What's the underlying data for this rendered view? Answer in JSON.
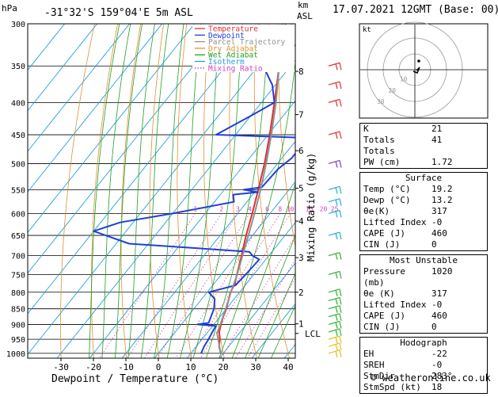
{
  "chart_data": {
    "type": "line",
    "title": "-31°32'S  159°04'E  5m  ASL",
    "date_label": "17.07.2021  12GMT  (Base: 00)",
    "xlabel": "Dewpoint / Temperature (°C)",
    "ylabel": "hPa",
    "km_label": "km\nASL",
    "mixing_axis_label": "Mixing Ratio (g/kg)",
    "xlim": [
      -40,
      40
    ],
    "ylim": [
      1000,
      300
    ],
    "x_ticks": [
      -30,
      -20,
      -10,
      0,
      10,
      20,
      30,
      40
    ],
    "p_ticks": [
      300,
      350,
      400,
      450,
      500,
      550,
      600,
      650,
      700,
      750,
      800,
      850,
      900,
      950,
      1000
    ],
    "km_ticks": [
      {
        "label": "8",
        "p": 357
      },
      {
        "label": "7",
        "p": 418
      },
      {
        "label": "6",
        "p": 477
      },
      {
        "label": "5",
        "p": 547
      },
      {
        "label": "4",
        "p": 617
      },
      {
        "label": "3",
        "p": 705
      },
      {
        "label": "2",
        "p": 800
      },
      {
        "label": "1",
        "p": 898
      },
      {
        "label": "LCL",
        "p": 930
      }
    ],
    "mixing_ratio_labels": [
      "1",
      "2",
      "3",
      "4",
      "6",
      "8",
      "10",
      "15",
      "20",
      "25"
    ],
    "legend": [
      {
        "name": "Temperature",
        "color": "#e03030",
        "style": "solid"
      },
      {
        "name": "Dewpoint",
        "color": "#1f3fd8",
        "style": "solid"
      },
      {
        "name": "Parcel Trajectory",
        "color": "#909090",
        "style": "solid"
      },
      {
        "name": "Dry Adiabat",
        "color": "#e09030",
        "style": "solid"
      },
      {
        "name": "Wet Adiabat",
        "color": "#20a020",
        "style": "solid"
      },
      {
        "name": "Isotherm",
        "color": "#20a0e0",
        "style": "solid"
      },
      {
        "name": "Mixing Ratio",
        "color": "#d040c0",
        "style": "dotted"
      }
    ],
    "series": [
      {
        "name": "Temperature",
        "color": "#e03030",
        "points": [
          [
            1000,
            19.2
          ],
          [
            975,
            17.0
          ],
          [
            950,
            15.5
          ],
          [
            925,
            13.5
          ],
          [
            900,
            12.2
          ],
          [
            875,
            11.0
          ],
          [
            850,
            10.0
          ],
          [
            825,
            8.6
          ],
          [
            800,
            7.2
          ],
          [
            775,
            6.4
          ],
          [
            750,
            4.8
          ],
          [
            700,
            1.6
          ],
          [
            650,
            -2.0
          ],
          [
            600,
            -5.5
          ],
          [
            550,
            -9.5
          ],
          [
            500,
            -14.0
          ],
          [
            450,
            -19.5
          ],
          [
            400,
            -26.0
          ],
          [
            350,
            -33.5
          ],
          [
            300,
            -42.0
          ]
        ]
      },
      {
        "name": "Dewpoint",
        "color": "#1f3fd8",
        "points": [
          [
            1000,
            13.2
          ],
          [
            975,
            12.4
          ],
          [
            950,
            12.0
          ],
          [
            925,
            11.4
          ],
          [
            905,
            11.0
          ],
          [
            900,
            5.0
          ],
          [
            895,
            8.0
          ],
          [
            870,
            7.0
          ],
          [
            850,
            6.2
          ],
          [
            820,
            4.0
          ],
          [
            800,
            0.5
          ],
          [
            780,
            7.0
          ],
          [
            750,
            7.5
          ],
          [
            710,
            8.0
          ],
          [
            700,
            5.0
          ],
          [
            690,
            3.0
          ],
          [
            670,
            -36.0
          ],
          [
            640,
            -50.0
          ],
          [
            620,
            -44.0
          ],
          [
            600,
            -30.0
          ],
          [
            575,
            -14.0
          ],
          [
            560,
            -16.0
          ],
          [
            555,
            -9.0
          ],
          [
            550,
            -14.0
          ],
          [
            545,
            -9.0
          ],
          [
            510,
            -8.5
          ],
          [
            490,
            -7.0
          ],
          [
            470,
            -7.0
          ],
          [
            455,
            -8.0
          ],
          [
            450,
            -36.0
          ],
          [
            420,
            -30.0
          ],
          [
            400,
            -26.0
          ],
          [
            375,
            -31.0
          ],
          [
            345,
            -40.0
          ],
          [
            330,
            -38.0
          ],
          [
            320,
            -30.0
          ],
          [
            310,
            -32.0
          ],
          [
            300,
            -36.0
          ]
        ]
      },
      {
        "name": "Parcel Trajectory",
        "color": "#909090",
        "points": [
          [
            1000,
            19.2
          ],
          [
            930,
            13.2
          ],
          [
            900,
            12.0
          ],
          [
            850,
            9.8
          ],
          [
            800,
            7.3
          ],
          [
            750,
            4.9
          ],
          [
            700,
            1.9
          ],
          [
            650,
            -1.3
          ],
          [
            600,
            -4.8
          ],
          [
            550,
            -8.8
          ],
          [
            500,
            -13.5
          ],
          [
            450,
            -19.0
          ],
          [
            400,
            -25.5
          ],
          [
            350,
            -33.5
          ],
          [
            300,
            -43.0
          ]
        ]
      }
    ]
  },
  "hodograph": {
    "label": "kt",
    "ring_labels": [
      "10",
      "20",
      "30"
    ]
  },
  "indices": {
    "rows": [
      {
        "label": "K",
        "value": "21"
      },
      {
        "label": "Totals Totals",
        "value": "41"
      },
      {
        "label": "PW (cm)",
        "value": "1.72"
      }
    ]
  },
  "surface": {
    "title": "Surface",
    "rows": [
      {
        "label": "Temp (°C)",
        "value": "19.2"
      },
      {
        "label": "Dewp (°C)",
        "value": "13.2"
      },
      {
        "label": "θe(K)",
        "value": "317"
      },
      {
        "label": "Lifted Index",
        "value": "-0"
      },
      {
        "label": "CAPE (J)",
        "value": "460"
      },
      {
        "label": "CIN (J)",
        "value": "0"
      }
    ]
  },
  "most_unstable": {
    "title": "Most Unstable",
    "rows": [
      {
        "label": "Pressure (mb)",
        "value": "1020"
      },
      {
        "label": "θe (K)",
        "value": "317"
      },
      {
        "label": "Lifted Index",
        "value": "-0"
      },
      {
        "label": "CAPE (J)",
        "value": "460"
      },
      {
        "label": "CIN (J)",
        "value": "0"
      }
    ]
  },
  "hodograph_stats": {
    "title": "Hodograph",
    "rows": [
      {
        "label": "EH",
        "value": "-22"
      },
      {
        "label": "SREH",
        "value": "-0"
      },
      {
        "label": "StmDir",
        "value": "283°"
      },
      {
        "label": "StmSpd (kt)",
        "value": "18"
      }
    ]
  },
  "footer": "© weatheronline.co.uk"
}
